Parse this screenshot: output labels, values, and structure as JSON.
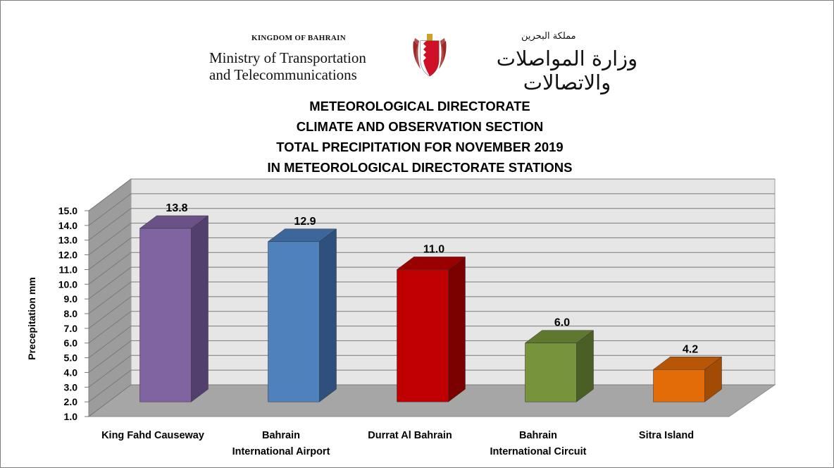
{
  "header": {
    "kingdom_en": "KINGDOM OF BAHRAIN",
    "ministry_en_line1": "Ministry of Transportation",
    "ministry_en_line2": "and Telecommunications",
    "kingdom_ar": "مملكة البحرين",
    "ministry_ar": "وزارة المواصلات والاتصالات",
    "emblem": "bahrain-emblem-icon"
  },
  "chart_data": {
    "type": "bar",
    "title_lines": [
      "METEOROLOGICAL DIRECTORATE",
      "CLIMATE AND OBSERVATION SECTION",
      "TOTAL PRECIPITATION FOR NOVEMBER 2019",
      "IN METEOROLOGICAL DIRECTORATE STATIONS"
    ],
    "ylabel": "Precepitation mm",
    "xlabel": "",
    "ylim": [
      1.0,
      15.0
    ],
    "yticks": [
      "1.0",
      "2.0",
      "3.0",
      "4.0",
      "5.0",
      "6.0",
      "7.0",
      "8.0",
      "9.0",
      "10.0",
      "11.0",
      "12.0",
      "13.0",
      "14.0",
      "15.0"
    ],
    "grid": true,
    "three_d": true,
    "categories": [
      {
        "line1": "King Fahd Causeway",
        "line2": ""
      },
      {
        "line1": "Bahrain",
        "line2": "International Airport"
      },
      {
        "line1": "Durrat Al Bahrain",
        "line2": ""
      },
      {
        "line1": "Bahrain",
        "line2": "International Circuit"
      },
      {
        "line1": "Sitra Island",
        "line2": ""
      }
    ],
    "values": [
      13.8,
      12.9,
      11.0,
      6.0,
      4.2
    ],
    "value_labels": [
      "13.8",
      "12.9",
      "11.0",
      "6.0",
      "4.2"
    ],
    "colors": [
      "#8064a2",
      "#4f81bd",
      "#c00000",
      "#77933c",
      "#e36c09"
    ],
    "side_colors": [
      "#533f6e",
      "#2f4f7c",
      "#7b0000",
      "#4b5e26",
      "#a14b05"
    ],
    "top_colors": [
      "#6a5287",
      "#3d679a",
      "#9a0000",
      "#5f772f",
      "#b85607"
    ]
  }
}
